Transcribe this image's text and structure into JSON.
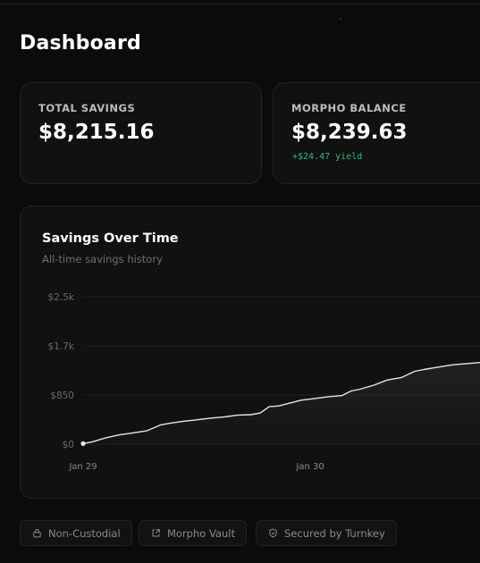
{
  "header": {
    "title": "Dashboard"
  },
  "cards": {
    "total_savings": {
      "label": "TOTAL SAVINGS",
      "value": "$8,215.16"
    },
    "morpho_balance": {
      "label": "MORPHO BALANCE",
      "value": "$8,239.63",
      "yield": "+$24.47 yield"
    }
  },
  "chart": {
    "title": "Savings Over Time",
    "subtitle": "All-time savings history"
  },
  "chart_data": {
    "type": "area",
    "title": "Savings Over Time",
    "subtitle": "All-time savings history",
    "y_tick_labels": [
      "$0",
      "$850",
      "$1.7k",
      "$2.5k"
    ],
    "y_ticks": [
      0,
      850,
      1700,
      2550
    ],
    "ylim": [
      0,
      2550
    ],
    "x_tick_labels": [
      "Jan 29",
      "Jan 30"
    ],
    "x_ticks": [
      0,
      1
    ],
    "xlim": [
      0,
      1.85
    ],
    "grid": true,
    "series": [
      {
        "line_color": "#e6e6e6",
        "x": [
          0,
          0.04,
          0.1,
          0.16,
          0.22,
          0.28,
          0.34,
          0.38,
          0.44,
          0.5,
          0.56,
          0.62,
          0.68,
          0.74,
          0.78,
          0.82,
          0.86,
          0.9,
          0.96,
          1.02,
          1.08,
          1.14,
          1.18,
          1.22,
          1.28,
          1.34,
          1.4,
          1.46,
          1.5,
          1.56,
          1.62,
          1.68,
          1.74,
          1.8,
          1.85
        ],
        "values": [
          10,
          40,
          110,
          160,
          195,
          230,
          330,
          360,
          395,
          420,
          450,
          470,
          500,
          510,
          540,
          650,
          660,
          700,
          760,
          790,
          820,
          840,
          920,
          950,
          1020,
          1110,
          1150,
          1260,
          1290,
          1330,
          1370,
          1390,
          1410,
          1440,
          1470
        ]
      }
    ]
  },
  "badges": [
    {
      "label": "Non-Custodial",
      "icon": "lock-icon"
    },
    {
      "label": "Morpho Vault",
      "icon": "external-link-icon"
    },
    {
      "label": "Secured by Turnkey",
      "icon": "shield-icon"
    }
  ]
}
